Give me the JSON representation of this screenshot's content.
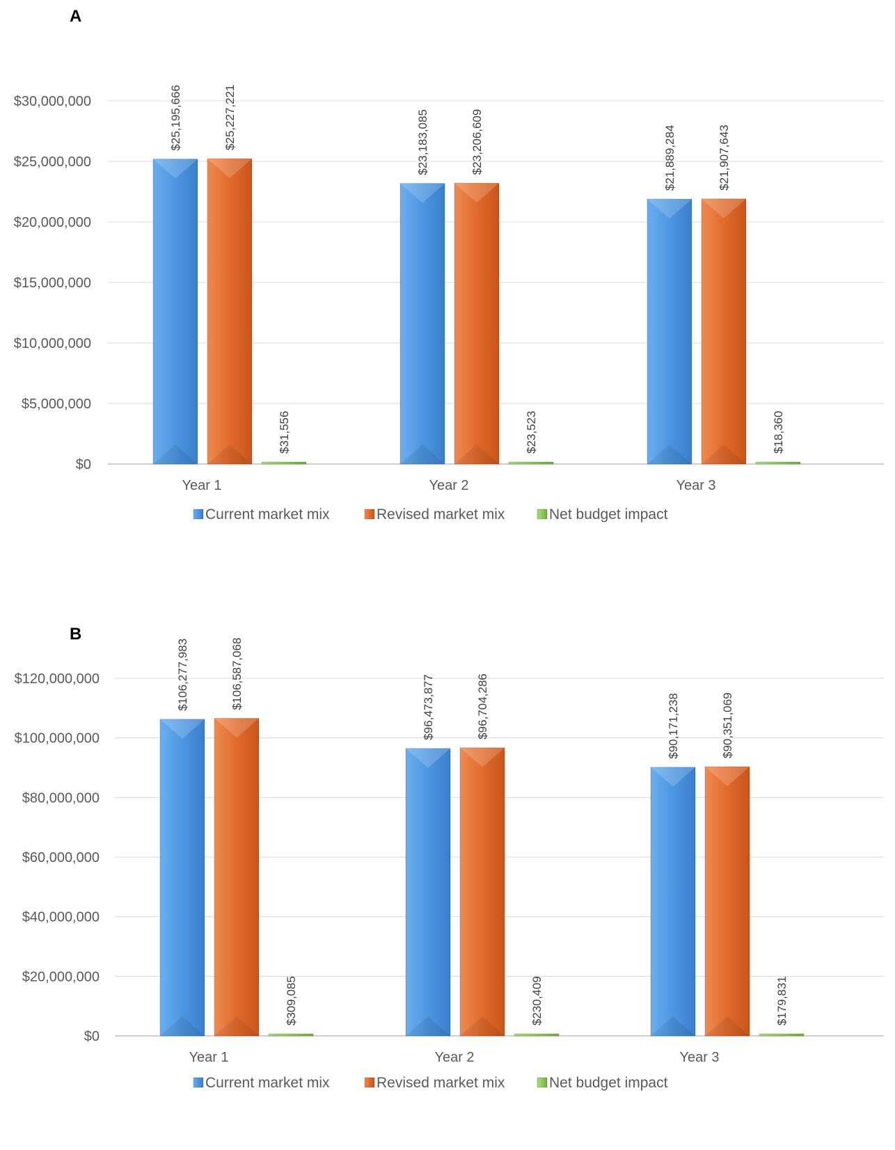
{
  "chart_data": [
    {
      "panel": "A",
      "type": "bar",
      "categories": [
        "Year 1",
        "Year 2",
        "Year 3"
      ],
      "series": [
        {
          "name": "Current market mix",
          "values": [
            25195666,
            23183085,
            21889284
          ],
          "labels": [
            "$25,195,666",
            "$23,183,085",
            "$21,889,284"
          ]
        },
        {
          "name": "Revised market mix",
          "values": [
            25227221,
            23206609,
            21907643
          ],
          "labels": [
            "$25,227,221",
            "$23,206,609",
            "$21,907,643"
          ]
        },
        {
          "name": "Net budget impact",
          "values": [
            31556,
            23523,
            18360
          ],
          "labels": [
            "$31,556",
            "$23,523",
            "$18,360"
          ]
        }
      ],
      "yticks": [
        "$0",
        "$5,000,000",
        "$10,000,000",
        "$15,000,000",
        "$20,000,000",
        "$25,000,000",
        "$30,000,000"
      ],
      "ylim": [
        0,
        30000000
      ],
      "grid": true,
      "legend": "bottom"
    },
    {
      "panel": "B",
      "type": "bar",
      "categories": [
        "Year 1",
        "Year 2",
        "Year 3"
      ],
      "series": [
        {
          "name": "Current market mix",
          "values": [
            106277983,
            96473877,
            90171238
          ],
          "labels": [
            "$106,277,983",
            "$96,473,877",
            "$90,171,238"
          ]
        },
        {
          "name": "Revised market mix",
          "values": [
            106587068,
            96704286,
            90351069
          ],
          "labels": [
            "$106,587,068",
            "$96,704,286",
            "$90,351,069"
          ]
        },
        {
          "name": "Net budget impact",
          "values": [
            309085,
            230409,
            179831
          ],
          "labels": [
            "$309,085",
            "$230,409",
            "$179,831"
          ]
        }
      ],
      "yticks": [
        "$0",
        "$20,000,000",
        "$40,000,000",
        "$60,000,000",
        "$80,000,000",
        "$100,000,000",
        "$120,000,000"
      ],
      "ylim": [
        0,
        120000000
      ],
      "grid": true,
      "legend": "bottom"
    }
  ],
  "colors": {
    "current": "#4d96e0",
    "revised": "#e16a2c",
    "net": "#8fca5d",
    "grid": "#d9d9d9",
    "axis": "#bfbfbf"
  }
}
